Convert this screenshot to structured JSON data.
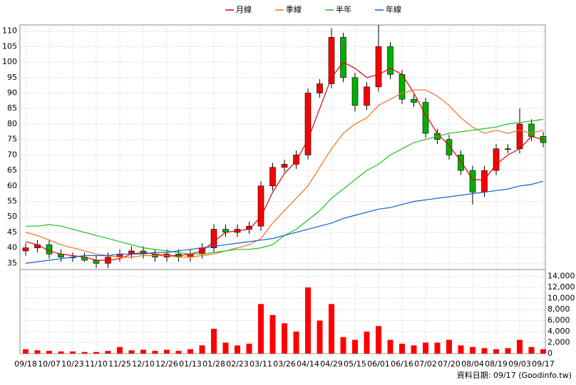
{
  "chart_data": {
    "type": "candlestick",
    "categories": [
      "09/18",
      null,
      "10/07",
      null,
      "10/23",
      null,
      "11/10",
      null,
      "11/25",
      null,
      "12/10",
      null,
      "12/26",
      null,
      "01/13",
      null,
      "01/28",
      null,
      "02/23",
      null,
      "03/11",
      null,
      "03/26",
      null,
      "04/14",
      null,
      "04/29",
      null,
      "05/15",
      null,
      "06/01",
      null,
      "06/16",
      null,
      "07/02",
      null,
      "07/20",
      null,
      "08/04",
      null,
      "08/19",
      null,
      "09/03",
      null,
      "09/17"
    ],
    "open": [
      39,
      40,
      41,
      38,
      37,
      37,
      36,
      35,
      37,
      38,
      39,
      38,
      37,
      38,
      37,
      38,
      40,
      46,
      45,
      46,
      47,
      60,
      66,
      67,
      70,
      90,
      93,
      108,
      95,
      86,
      92,
      105,
      96,
      88,
      87,
      77,
      75,
      70,
      65,
      58,
      65,
      72,
      72,
      80,
      76
    ],
    "high": [
      41.5,
      42.5,
      42.5,
      39.5,
      38.5,
      38.5,
      37.5,
      38.5,
      39.5,
      40.5,
      40.5,
      39.5,
      39.5,
      39.5,
      39.5,
      41.5,
      47.5,
      47.5,
      47.5,
      48.5,
      61.5,
      67.5,
      68.5,
      71.5,
      91.5,
      94.5,
      111,
      109.5,
      96.5,
      93.5,
      112,
      106.5,
      97.5,
      89.5,
      88.5,
      78.5,
      76.5,
      71.5,
      66.5,
      66.5,
      73.5,
      73.5,
      85,
      81.5,
      77.5
    ],
    "low": [
      37.5,
      38.5,
      36.5,
      35.5,
      35.5,
      35.5,
      33.5,
      33.5,
      35.5,
      36.5,
      36.5,
      35.5,
      35.5,
      35.5,
      35.5,
      36.5,
      38.5,
      43.5,
      43.5,
      44.5,
      45.5,
      58.5,
      64.5,
      65.5,
      68.5,
      88.5,
      91.5,
      93.5,
      84,
      84.5,
      90.5,
      94.5,
      86.5,
      85.5,
      75.5,
      73.5,
      68.5,
      63.5,
      54,
      56.5,
      63.5,
      70.5,
      70.5,
      74.5,
      72.5
    ],
    "close": [
      40,
      41,
      38,
      37,
      37,
      36,
      35,
      37,
      38,
      39,
      38,
      37,
      38,
      37,
      38,
      40,
      46,
      45,
      46,
      47,
      60,
      66,
      67,
      70,
      90,
      93,
      108,
      95,
      86,
      92,
      105,
      96,
      88,
      87,
      77,
      75,
      70,
      65,
      58,
      65,
      72,
      72,
      80,
      76,
      74
    ],
    "up_color": "#ff0000",
    "down_color": "#00b000",
    "series": [
      {
        "name": "月線",
        "color": "#e00000",
        "values": [
          42,
          41,
          39,
          38,
          37.5,
          37,
          36,
          36,
          36.5,
          38,
          38.5,
          38,
          37.5,
          37.5,
          38,
          39,
          42,
          45,
          45.5,
          46,
          50,
          58,
          64,
          68,
          75,
          85,
          95,
          100,
          98,
          95,
          96,
          98,
          96,
          90,
          83,
          77,
          73,
          68,
          62,
          62,
          67,
          70,
          72,
          76,
          75
        ]
      },
      {
        "name": "季線",
        "color": "#f07020",
        "values": [
          45,
          44,
          42.5,
          41,
          40,
          39,
          38,
          37.5,
          37,
          37,
          37.5,
          37.5,
          37.5,
          37,
          37,
          37.5,
          38,
          39,
          40,
          41,
          43,
          48,
          52,
          56,
          60,
          66,
          72,
          77,
          80,
          82,
          86,
          88,
          90,
          91,
          91,
          89,
          86,
          82,
          79,
          77,
          78,
          77,
          78,
          77,
          78
        ]
      },
      {
        "name": "半年",
        "color": "#20c020",
        "values": [
          47,
          47,
          47.5,
          47,
          46,
          45,
          44,
          43,
          42,
          41,
          40,
          39.5,
          39,
          38.5,
          38,
          38,
          38.5,
          39,
          39.5,
          39.5,
          40,
          41,
          44,
          46,
          49,
          52,
          56,
          59,
          62,
          65,
          67,
          70,
          72,
          74,
          75,
          76,
          77,
          77.5,
          78,
          78.5,
          79,
          80,
          80.5,
          81,
          81.5
        ]
      },
      {
        "name": "年線",
        "color": "#1060d0",
        "values": [
          35,
          35.5,
          36,
          36.5,
          37,
          37.5,
          37.5,
          37.5,
          38,
          38,
          38,
          38.5,
          38.5,
          39,
          39.5,
          40,
          40.5,
          41,
          41.5,
          42,
          42.5,
          43,
          44,
          45,
          46,
          47,
          48,
          49.5,
          50.5,
          51.5,
          52.5,
          53,
          54,
          55,
          55.5,
          56,
          56.5,
          57,
          57.5,
          58,
          58.5,
          59,
          60,
          60.5,
          61.5
        ]
      }
    ],
    "ylim": [
      33,
      112
    ],
    "yticks": [
      35,
      40,
      45,
      50,
      55,
      60,
      65,
      70,
      75,
      80,
      85,
      90,
      95,
      100,
      105,
      110
    ],
    "volume": [
      800,
      600,
      500,
      400,
      400,
      300,
      300,
      500,
      1200,
      600,
      700,
      500,
      700,
      500,
      800,
      1500,
      4500,
      2000,
      1500,
      1800,
      9000,
      7000,
      5500,
      4000,
      12000,
      6000,
      9000,
      3000,
      2500,
      4000,
      5000,
      2500,
      1800,
      1500,
      2000,
      2000,
      2500,
      1500,
      1200,
      1000,
      800,
      1000,
      2500,
      1200,
      800
    ],
    "volume_color": "#ff0000",
    "y2lim": [
      0,
      15000
    ],
    "y2ticks": [
      0,
      {
        "value": 2000,
        "label": "2,000"
      },
      {
        "value": 4000,
        "label": "4,000"
      },
      {
        "value": 6000,
        "label": "6,000"
      },
      {
        "value": 8000,
        "label": "8,000"
      },
      {
        "value": 10000,
        "label": "10,000"
      },
      {
        "value": 12000,
        "label": "12,000"
      },
      {
        "value": 14000,
        "label": "14,000"
      }
    ],
    "grid": true,
    "footnote": "資料日期: 09/17  (Goodinfo.tw)"
  }
}
